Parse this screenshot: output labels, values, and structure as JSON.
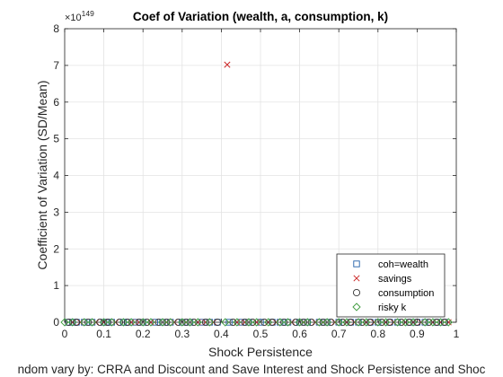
{
  "chart_data": {
    "type": "scatter",
    "title": "Coef of Variation (wealth, a, consumption, k)",
    "xlabel": "Shock Persistence",
    "ylabel": "Coefficient of Variation (SD/Mean)",
    "caption": "ndom vary by: CRRA and Discount and Save Interest and Shock Persistence and Shoc",
    "y_exponent_base": "×10",
    "y_exponent": "149",
    "xlim": [
      0,
      1
    ],
    "ylim": [
      0,
      8
    ],
    "xticks": [
      "0",
      "0.1",
      "0.2",
      "0.3",
      "0.4",
      "0.5",
      "0.6",
      "0.7",
      "0.8",
      "0.9",
      "1"
    ],
    "yticks": [
      "0",
      "1",
      "2",
      "3",
      "4",
      "5",
      "6",
      "7",
      "8"
    ],
    "grid": true,
    "legend_position": "bottom-right",
    "series": [
      {
        "name": "coh=wealth",
        "marker": "square",
        "color": "#1f5fa8",
        "points": [
          [
            0.01,
            0
          ],
          [
            0.02,
            0
          ],
          [
            0.03,
            0
          ],
          [
            0.05,
            0
          ],
          [
            0.07,
            0
          ],
          [
            0.1,
            0
          ],
          [
            0.11,
            0
          ],
          [
            0.12,
            0
          ],
          [
            0.15,
            0
          ],
          [
            0.16,
            0
          ],
          [
            0.18,
            0
          ],
          [
            0.2,
            0
          ],
          [
            0.23,
            0
          ],
          [
            0.25,
            0
          ],
          [
            0.27,
            0
          ],
          [
            0.3,
            0
          ],
          [
            0.32,
            0
          ],
          [
            0.35,
            0
          ],
          [
            0.37,
            0
          ],
          [
            0.39,
            0
          ],
          [
            0.42,
            0
          ],
          [
            0.45,
            0
          ],
          [
            0.47,
            0
          ],
          [
            0.5,
            0
          ],
          [
            0.53,
            0
          ],
          [
            0.55,
            0
          ],
          [
            0.57,
            0
          ],
          [
            0.6,
            0
          ],
          [
            0.62,
            0
          ],
          [
            0.65,
            0
          ],
          [
            0.67,
            0
          ],
          [
            0.7,
            0
          ],
          [
            0.73,
            0
          ],
          [
            0.75,
            0
          ],
          [
            0.78,
            0
          ],
          [
            0.8,
            0
          ],
          [
            0.83,
            0
          ],
          [
            0.85,
            0
          ],
          [
            0.88,
            0
          ],
          [
            0.9,
            0
          ],
          [
            0.92,
            0
          ],
          [
            0.95,
            0
          ],
          [
            0.97,
            0
          ]
        ]
      },
      {
        "name": "savings",
        "marker": "x",
        "color": "#cc2a2a",
        "points": [
          [
            0.02,
            0
          ],
          [
            0.04,
            0
          ],
          [
            0.08,
            0
          ],
          [
            0.1,
            0
          ],
          [
            0.13,
            0
          ],
          [
            0.17,
            0
          ],
          [
            0.19,
            0
          ],
          [
            0.22,
            0
          ],
          [
            0.26,
            0
          ],
          [
            0.28,
            0
          ],
          [
            0.31,
            0
          ],
          [
            0.34,
            0
          ],
          [
            0.36,
            0
          ],
          [
            0.38,
            0
          ],
          [
            0.415,
            7.02
          ],
          [
            0.44,
            0
          ],
          [
            0.46,
            0
          ],
          [
            0.49,
            0
          ],
          [
            0.52,
            0
          ],
          [
            0.54,
            0
          ],
          [
            0.58,
            0
          ],
          [
            0.61,
            0
          ],
          [
            0.64,
            0
          ],
          [
            0.66,
            0
          ],
          [
            0.69,
            0
          ],
          [
            0.72,
            0
          ],
          [
            0.74,
            0
          ],
          [
            0.77,
            0
          ],
          [
            0.79,
            0
          ],
          [
            0.82,
            0
          ],
          [
            0.84,
            0
          ],
          [
            0.87,
            0
          ],
          [
            0.89,
            0
          ],
          [
            0.91,
            0
          ],
          [
            0.94,
            0
          ],
          [
            0.96,
            0
          ],
          [
            0.98,
            0
          ]
        ]
      },
      {
        "name": "consumption",
        "marker": "circle",
        "color": "#333333",
        "points": [
          [
            0.01,
            0
          ],
          [
            0.03,
            0
          ],
          [
            0.06,
            0
          ],
          [
            0.09,
            0
          ],
          [
            0.11,
            0
          ],
          [
            0.14,
            0
          ],
          [
            0.16,
            0
          ],
          [
            0.19,
            0
          ],
          [
            0.21,
            0
          ],
          [
            0.24,
            0
          ],
          [
            0.26,
            0
          ],
          [
            0.29,
            0
          ],
          [
            0.31,
            0
          ],
          [
            0.33,
            0
          ],
          [
            0.36,
            0
          ],
          [
            0.39,
            0
          ],
          [
            0.43,
            0
          ],
          [
            0.46,
            0
          ],
          [
            0.48,
            0
          ],
          [
            0.51,
            0
          ],
          [
            0.53,
            0
          ],
          [
            0.56,
            0
          ],
          [
            0.59,
            0
          ],
          [
            0.61,
            0
          ],
          [
            0.63,
            0
          ],
          [
            0.66,
            0
          ],
          [
            0.68,
            0
          ],
          [
            0.71,
            0
          ],
          [
            0.73,
            0
          ],
          [
            0.76,
            0
          ],
          [
            0.78,
            0
          ],
          [
            0.81,
            0
          ],
          [
            0.83,
            0
          ],
          [
            0.86,
            0
          ],
          [
            0.88,
            0
          ],
          [
            0.9,
            0
          ],
          [
            0.93,
            0
          ],
          [
            0.95,
            0
          ],
          [
            0.97,
            0
          ]
        ]
      },
      {
        "name": "risky k",
        "marker": "diamond",
        "color": "#3a9a3a",
        "points": [
          [
            0.0,
            0
          ],
          [
            0.02,
            0
          ],
          [
            0.05,
            0
          ],
          [
            0.07,
            0
          ],
          [
            0.1,
            0
          ],
          [
            0.12,
            0
          ],
          [
            0.15,
            0
          ],
          [
            0.17,
            0
          ],
          [
            0.2,
            0
          ],
          [
            0.22,
            0
          ],
          [
            0.25,
            0
          ],
          [
            0.27,
            0
          ],
          [
            0.3,
            0
          ],
          [
            0.32,
            0
          ],
          [
            0.34,
            0
          ],
          [
            0.37,
            0
          ],
          [
            0.41,
            0
          ],
          [
            0.44,
            0
          ],
          [
            0.47,
            0
          ],
          [
            0.49,
            0
          ],
          [
            0.52,
            0
          ],
          [
            0.55,
            0
          ],
          [
            0.57,
            0
          ],
          [
            0.6,
            0
          ],
          [
            0.62,
            0
          ],
          [
            0.65,
            0
          ],
          [
            0.67,
            0
          ],
          [
            0.7,
            0
          ],
          [
            0.72,
            0
          ],
          [
            0.75,
            0
          ],
          [
            0.77,
            0
          ],
          [
            0.8,
            0
          ],
          [
            0.82,
            0
          ],
          [
            0.85,
            0
          ],
          [
            0.87,
            0
          ],
          [
            0.89,
            0
          ],
          [
            0.92,
            0
          ],
          [
            0.94,
            0
          ],
          [
            0.96,
            0
          ],
          [
            0.98,
            0
          ]
        ]
      }
    ]
  }
}
